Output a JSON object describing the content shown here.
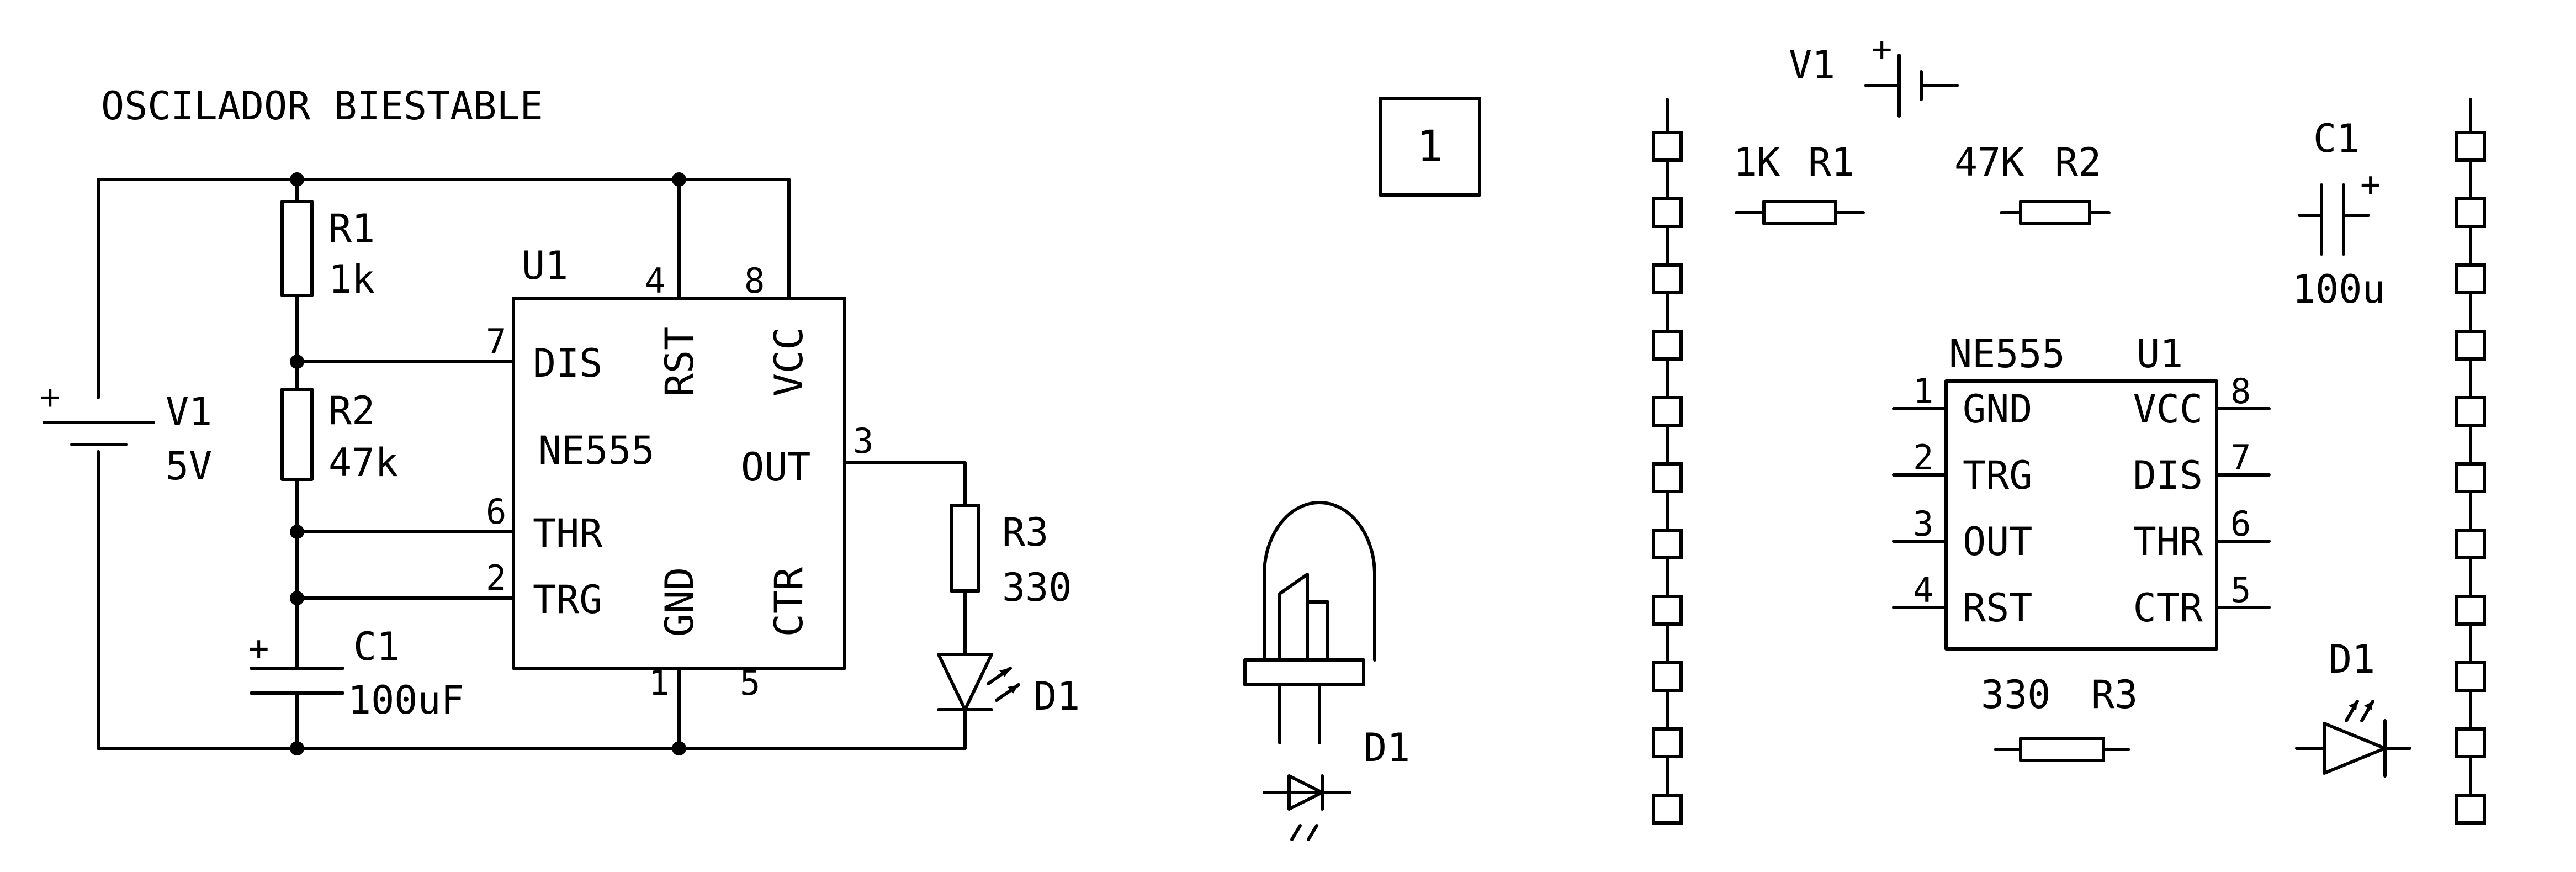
{
  "title": "OSCILADOR BIESTABLE",
  "sheet_number": "1",
  "schematic": {
    "v1": {
      "ref": "V1",
      "value": "5V",
      "plus": "+"
    },
    "r1": {
      "ref": "R1",
      "value": "1k"
    },
    "r2": {
      "ref": "R2",
      "value": "47k"
    },
    "r3": {
      "ref": "R3",
      "value": "330"
    },
    "c1": {
      "ref": "C1",
      "value": "100uF",
      "plus": "+"
    },
    "d1": {
      "ref": "D1"
    },
    "u1": {
      "ref": "U1",
      "part": "NE555",
      "pins": {
        "dis": {
          "num": "7",
          "label": "DIS"
        },
        "thr": {
          "num": "6",
          "label": "THR"
        },
        "trg": {
          "num": "2",
          "label": "TRG"
        },
        "rst": {
          "num": "4",
          "label": "RST"
        },
        "vcc": {
          "num": "8",
          "label": "VCC"
        },
        "out": {
          "num": "3",
          "label": "OUT"
        },
        "gnd": {
          "num": "1",
          "label": "GND"
        },
        "ctr": {
          "num": "5",
          "label": "CTR"
        }
      }
    }
  },
  "layout_view": {
    "v1": {
      "ref": "V1",
      "plus": "+"
    },
    "r1": {
      "value": "1K",
      "ref": "R1"
    },
    "r2": {
      "value": "47K",
      "ref": "R2"
    },
    "c1": {
      "ref": "C1",
      "value": "100u",
      "plus": "+"
    },
    "ic": {
      "part": "NE555",
      "ref": "U1",
      "left_pins": [
        {
          "num": "1",
          "label": "GND"
        },
        {
          "num": "2",
          "label": "TRG"
        },
        {
          "num": "3",
          "label": "OUT"
        },
        {
          "num": "4",
          "label": "RST"
        }
      ],
      "right_pins": [
        {
          "num": "8",
          "label": "VCC"
        },
        {
          "num": "7",
          "label": "DIS"
        },
        {
          "num": "6",
          "label": "THR"
        },
        {
          "num": "5",
          "label": "CTR"
        }
      ]
    },
    "r3": {
      "value": "330",
      "ref": "R3"
    },
    "d1_physical": {
      "ref": "D1"
    },
    "d1_symbol": {
      "ref": "D1"
    }
  },
  "colors": {
    "ink": "#000000",
    "background": "#ffffff"
  }
}
